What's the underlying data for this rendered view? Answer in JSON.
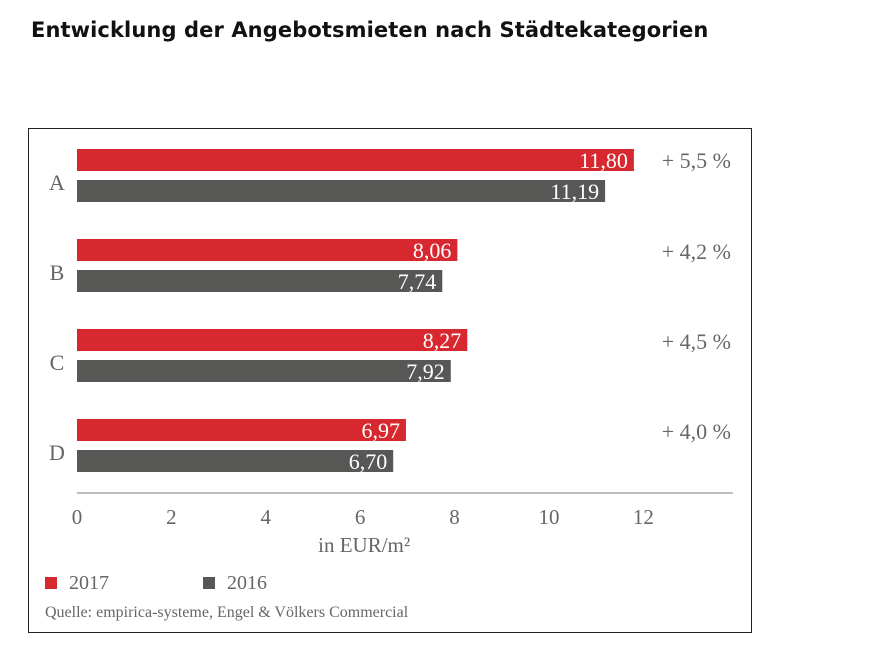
{
  "title": "Entwicklung der Angebotsmieten nach Städtekategorien",
  "source": "Quelle: empirica-systeme, Engel & Völkers Commercial",
  "colors": {
    "series_2017": "#d7282f",
    "series_2016": "#575756",
    "axis": "#bdbdbd",
    "text": "#666666"
  },
  "chart_data": {
    "type": "bar",
    "orientation": "horizontal",
    "categories": [
      "A",
      "B",
      "C",
      "D"
    ],
    "series": [
      {
        "name": "2017",
        "values": [
          11.8,
          8.06,
          8.27,
          6.97
        ],
        "labels": [
          "11,80",
          "8,06",
          "8,27",
          "6,97"
        ]
      },
      {
        "name": "2016",
        "values": [
          11.19,
          7.74,
          7.92,
          6.7
        ],
        "labels": [
          "11,19",
          "7,74",
          "7,92",
          "6,70"
        ]
      }
    ],
    "changes": [
      "+ 5,5 %",
      "+ 4,2 %",
      "+ 4,5 %",
      "+ 4,0 %"
    ],
    "xlabel": "in EUR/m²",
    "xticks": [
      0,
      2,
      4,
      6,
      8,
      10,
      12
    ],
    "xlim": [
      0,
      13.9
    ],
    "grid": false,
    "legend_position": "bottom-left"
  }
}
